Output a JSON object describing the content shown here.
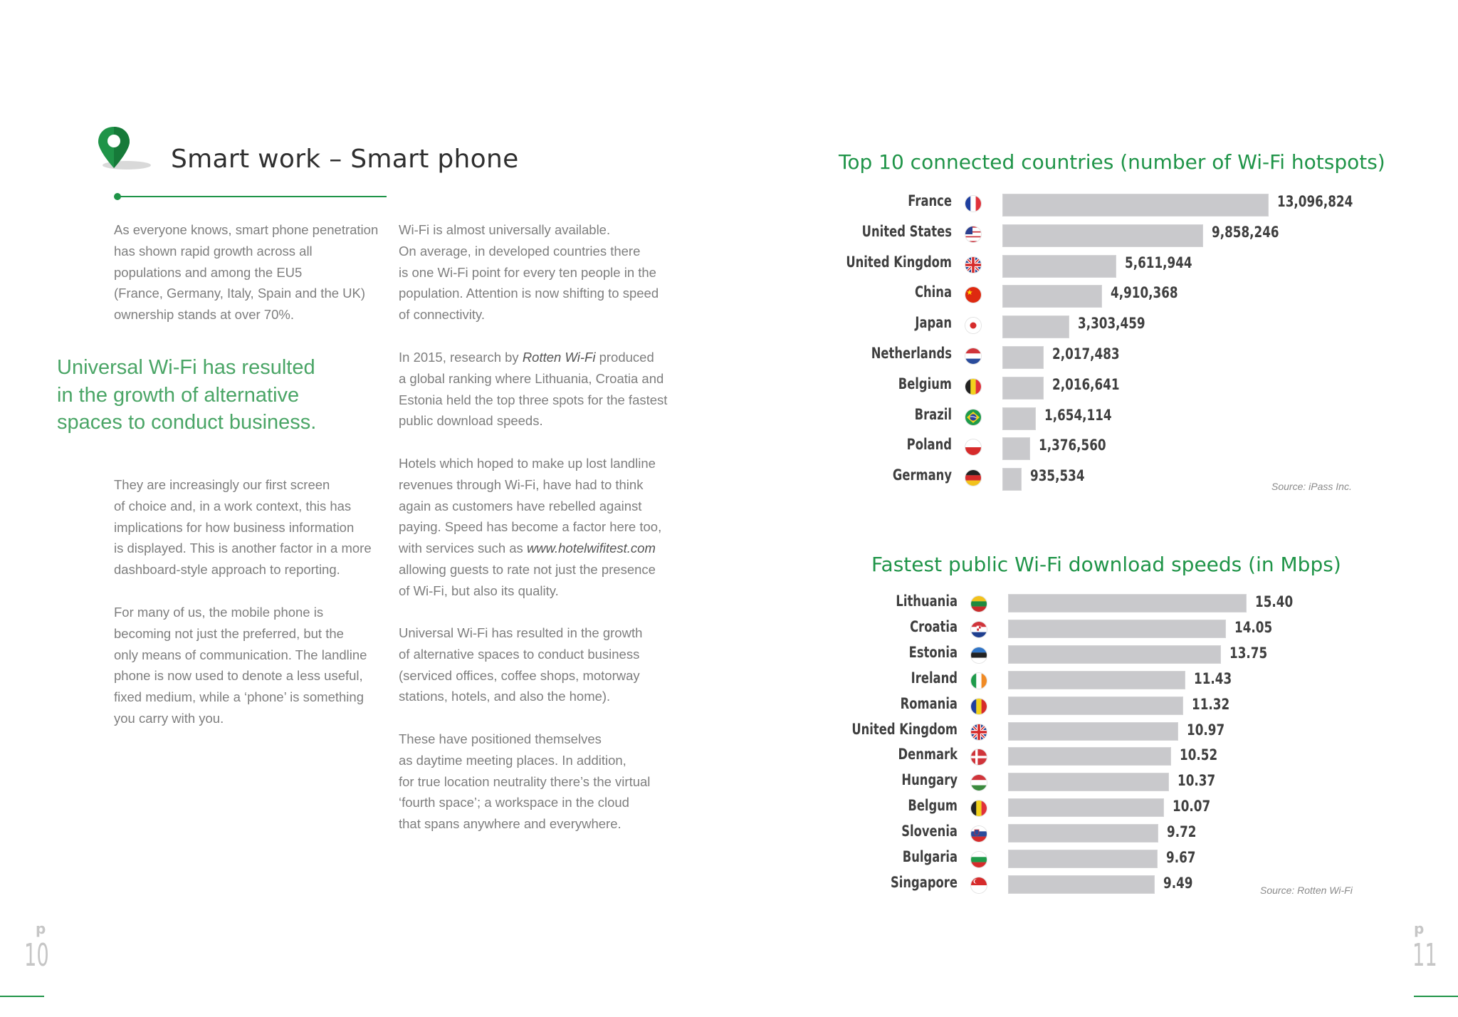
{
  "left_page": {
    "title": "Smart work – Smart phone",
    "col1_p1": [
      "As everyone knows, smart phone penetration",
      "has shown rapid growth across all",
      "populations and among the EU5",
      "(France, Germany, Italy, Spain and the UK)",
      "ownership stands at over 70%."
    ],
    "pull_quote": [
      "Universal Wi-Fi has resulted",
      "in the growth of alternative",
      "spaces to conduct business."
    ],
    "col1_p2": [
      "They are increasingly our first screen",
      "of choice and, in a work context, this has",
      "implications for how business information",
      "is displayed. This is another factor in a more",
      "dashboard-style approach to reporting."
    ],
    "col1_p3": [
      "For many of us, the mobile phone is",
      "becoming not just the preferred, but the",
      "only means of communication. The landline",
      "phone is now used to denote a less useful,",
      "fixed medium, while a ‘phone’ is something",
      "you carry with you."
    ],
    "col2_p1": [
      "Wi-Fi is almost universally available.",
      "On average, in developed countries there",
      "is one Wi-Fi point for every ten people in the",
      "population. Attention is now shifting to speed",
      "of connectivity."
    ],
    "col2_p2": {
      "line1_pre": "In 2015, research by ",
      "line1_em": "Rotten Wi-Fi",
      "line1_post": " produced",
      "rest": [
        "a global ranking where Lithuania, Croatia and",
        "Estonia held the top three spots for the fastest",
        "public download speeds."
      ]
    },
    "col2_p3": {
      "lines_before": [
        "Hotels which hoped to make up lost landline",
        "revenues through Wi-Fi, have had to think",
        "again as customers have rebelled against",
        "paying. Speed has become a factor here too,"
      ],
      "link_pre": "with services such as ",
      "link": "www.hotelwifitest.com",
      "lines_after": [
        "allowing guests to rate not just the presence",
        "of Wi-Fi, but also its quality."
      ]
    },
    "col2_p4": [
      "Universal Wi-Fi has resulted in the growth",
      "of alternative spaces to conduct business",
      "(serviced offices, coffee shops, motorway",
      "stations, hotels, and also the home)."
    ],
    "col2_p5": [
      "These have positioned themselves",
      "as daytime meeting places. In addition,",
      "for true location neutrality there’s the virtual",
      "‘fourth space’; a workspace in the cloud",
      "that spans anywhere and everywhere."
    ],
    "page_letter": "p",
    "page_number": "10"
  },
  "right_page": {
    "page_letter": "p",
    "page_number": "11"
  },
  "colors": {
    "brand_green": "#1f9448",
    "pull_quote_green": "#4aa566",
    "bar_gray": "#c9c9cc"
  },
  "chart_data": [
    {
      "type": "bar",
      "orientation": "horizontal",
      "title": "Top 10 connected countries (number of Wi-Fi hotspots)",
      "categories": [
        "France",
        "United States",
        "United Kingdom",
        "China",
        "Japan",
        "Netherlands",
        "Belgium",
        "Brazil",
        "Poland",
        "Germany"
      ],
      "values": [
        13096824,
        9858246,
        5611944,
        4910368,
        3303459,
        2017483,
        2016641,
        1654114,
        1376560,
        935534
      ],
      "value_labels": [
        "13,096,824",
        "9,858,246",
        "5,611,944",
        "4,910,368",
        "3,303,459",
        "2,017,483",
        "2,016,641",
        "1,654,114",
        "1,376,560",
        "935,534"
      ],
      "flags": [
        "fr",
        "us",
        "uk",
        "cn",
        "jp",
        "nl",
        "be",
        "br",
        "pl",
        "de"
      ],
      "source": "Source: iPass Inc."
    },
    {
      "type": "bar",
      "orientation": "horizontal",
      "title": "Fastest public Wi-Fi download speeds (in Mbps)",
      "categories": [
        "Lithuania",
        "Croatia",
        "Estonia",
        "Ireland",
        "Romania",
        "United Kingdom",
        "Denmark",
        "Hungary",
        "Belgum",
        "Slovenia",
        "Bulgaria",
        "Singapore"
      ],
      "values": [
        15.4,
        14.05,
        13.75,
        11.43,
        11.32,
        10.97,
        10.52,
        10.37,
        10.07,
        9.72,
        9.67,
        9.49
      ],
      "value_labels": [
        "15.40",
        "14.05",
        "13.75",
        "11.43",
        "11.32",
        "10.97",
        "10.52",
        "10.37",
        "10.07",
        "9.72",
        "9.67",
        "9.49"
      ],
      "flags": [
        "lt",
        "hr",
        "ee",
        "ie",
        "ro",
        "uk",
        "dk",
        "hu",
        "be",
        "si",
        "bg",
        "sg"
      ],
      "source": "Source: Rotten Wi-Fi"
    }
  ]
}
